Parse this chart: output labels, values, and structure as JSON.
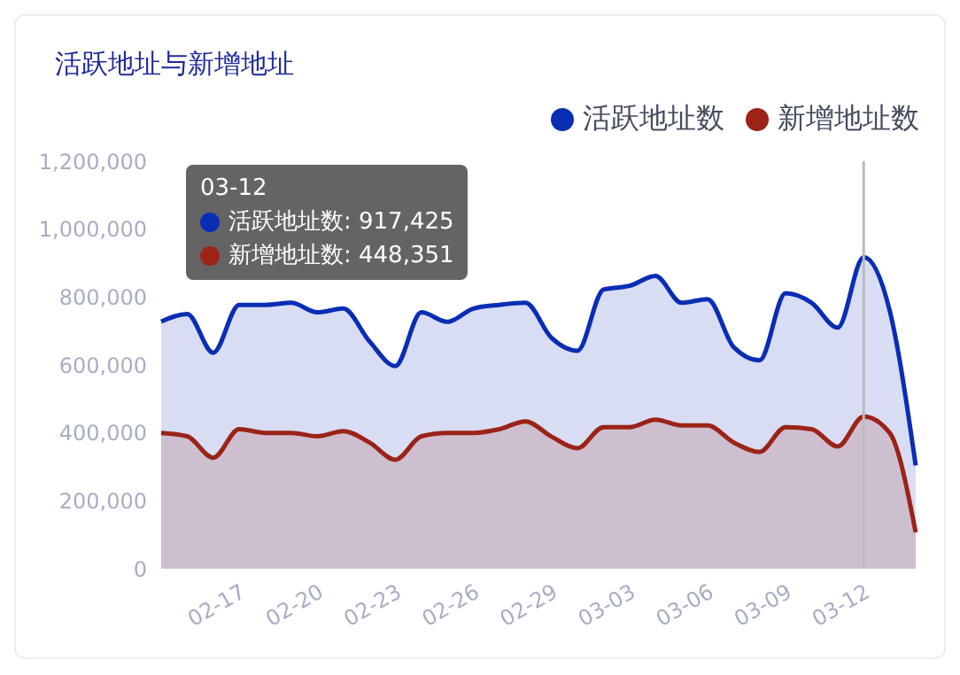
{
  "chart_data": {
    "type": "area",
    "title": "活跃地址与新增地址",
    "categories": [
      null,
      null,
      null,
      "02-17",
      null,
      null,
      "02-20",
      null,
      null,
      "02-23",
      null,
      null,
      "02-26",
      null,
      null,
      "02-29",
      null,
      null,
      "03-03",
      null,
      null,
      "03-06",
      null,
      null,
      "03-09",
      null,
      null,
      "03-12",
      null,
      null
    ],
    "series": [
      {
        "name": "活跃地址数",
        "color": "#0a2db5",
        "values": [
          728000,
          750000,
          636000,
          777000,
          777000,
          783000,
          755000,
          766000,
          670000,
          597000,
          755000,
          727000,
          766000,
          777000,
          783000,
          680000,
          642000,
          822000,
          833000,
          862000,
          783000,
          794000,
          653000,
          614000,
          811000,
          783000,
          710000,
          917425,
          760000,
          304000
        ]
      },
      {
        "name": "新增地址数",
        "color": "#9b2318",
        "values": [
          400000,
          390000,
          327000,
          411000,
          400000,
          400000,
          390000,
          405000,
          372000,
          321000,
          390000,
          400000,
          400000,
          411000,
          434000,
          389000,
          355000,
          417000,
          417000,
          439000,
          422000,
          422000,
          372000,
          344000,
          417000,
          411000,
          360000,
          448351,
          400000,
          107000
        ]
      }
    ],
    "ylim": [
      0,
      1200000
    ],
    "yticks": [
      0,
      {
        "value": 200000,
        "label": "200,000"
      },
      {
        "value": 400000,
        "label": "400,000"
      },
      {
        "value": 600000,
        "label": "600,000"
      },
      {
        "value": 800000,
        "label": "800,000"
      },
      {
        "value": 1000000,
        "label": "1,000,000"
      },
      {
        "value": 1200000,
        "label": "1,200,000"
      }
    ],
    "grid": false,
    "legend": "top right",
    "ref_lines": [
      {
        "axis": "x",
        "value": "03-12",
        "color": "#bbbbbb"
      }
    ],
    "annotations": [
      "03-12",
      "活跃地址数: 917,425",
      "新增地址数: 448,351"
    ]
  }
}
